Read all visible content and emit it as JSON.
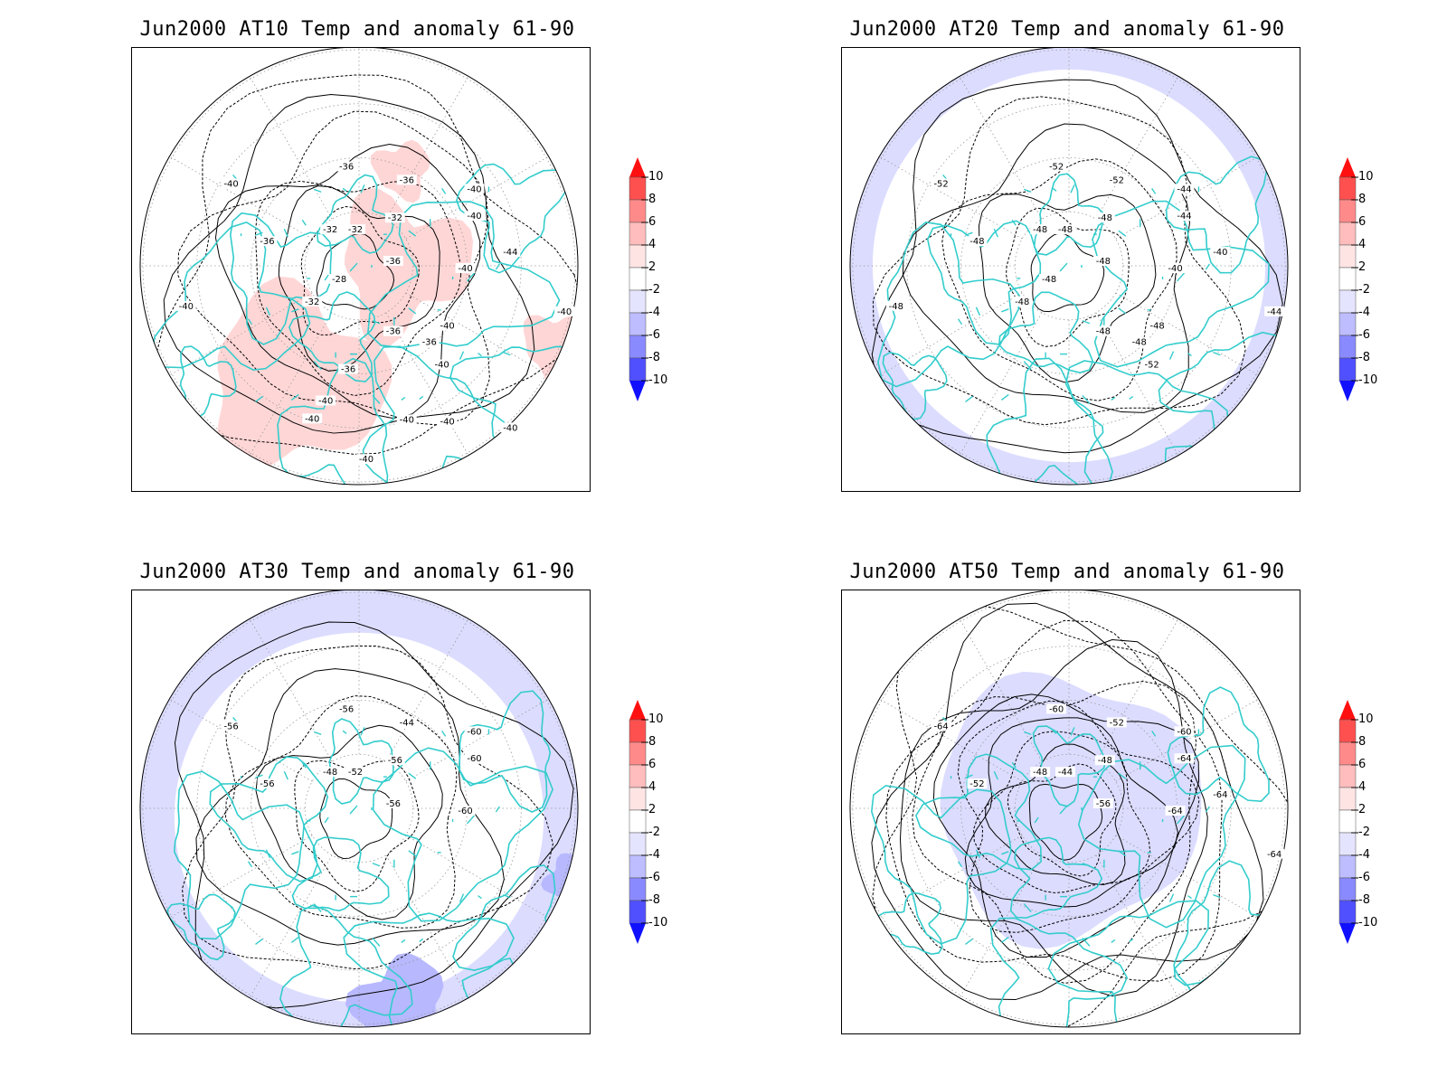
{
  "panels": [
    {
      "title": "Jun2000 AT10 Temp and anomaly 61-90",
      "contour_labels": [
        "-40",
        "-36",
        "-36",
        "-32",
        "-32",
        "-32",
        "-36",
        "-36",
        "-40",
        "-40",
        "-40",
        "-44",
        "-40",
        "-40",
        "-28",
        "-32",
        "-36",
        "-36",
        "-40",
        "-40",
        "-40",
        "-40",
        "-40",
        "-40",
        "-40",
        "-40",
        "-36"
      ],
      "anomaly": "warm"
    },
    {
      "title": "Jun2000 AT20 Temp and anomaly 61-90",
      "contour_labels": [
        "-52",
        "-52",
        "-52",
        "-48",
        "-48",
        "-48",
        "-48",
        "-48",
        "-44",
        "-44",
        "-40",
        "-40",
        "-44",
        "-48",
        "-48",
        "-48",
        "-48",
        "-48",
        "-48",
        "-52"
      ],
      "anomaly": "cool-ring"
    },
    {
      "title": "Jun2000 AT30 Temp and anomaly 61-90",
      "contour_labels": [
        "-56",
        "-56",
        "-44",
        "-48",
        "-52",
        "-56",
        "-56",
        "-56",
        "-60",
        "-60",
        "-60"
      ],
      "anomaly": "cool-outer"
    },
    {
      "title": "Jun2000 AT50 Temp and anomaly 61-90",
      "contour_labels": [
        "-64",
        "-60",
        "-52",
        "-48",
        "-44",
        "-48",
        "-52",
        "-56",
        "-60",
        "-64",
        "-64",
        "-64",
        "-64"
      ],
      "anomaly": "cool-center"
    }
  ],
  "colorbar": {
    "ticks": [
      "10",
      "8",
      "6",
      "4",
      "2",
      "-2",
      "-4",
      "-6",
      "-8",
      "-10"
    ],
    "colors": [
      "#ff1010",
      "#ff5050",
      "#ff8a8a",
      "#ffbdbd",
      "#ffe4e4",
      "#ffffff",
      "#e4e4ff",
      "#bdbdff",
      "#8a8aff",
      "#5050ff",
      "#1010ff"
    ]
  },
  "colors": {
    "coast": "#33cccc",
    "contour": "#000000",
    "grid": "#999999"
  }
}
